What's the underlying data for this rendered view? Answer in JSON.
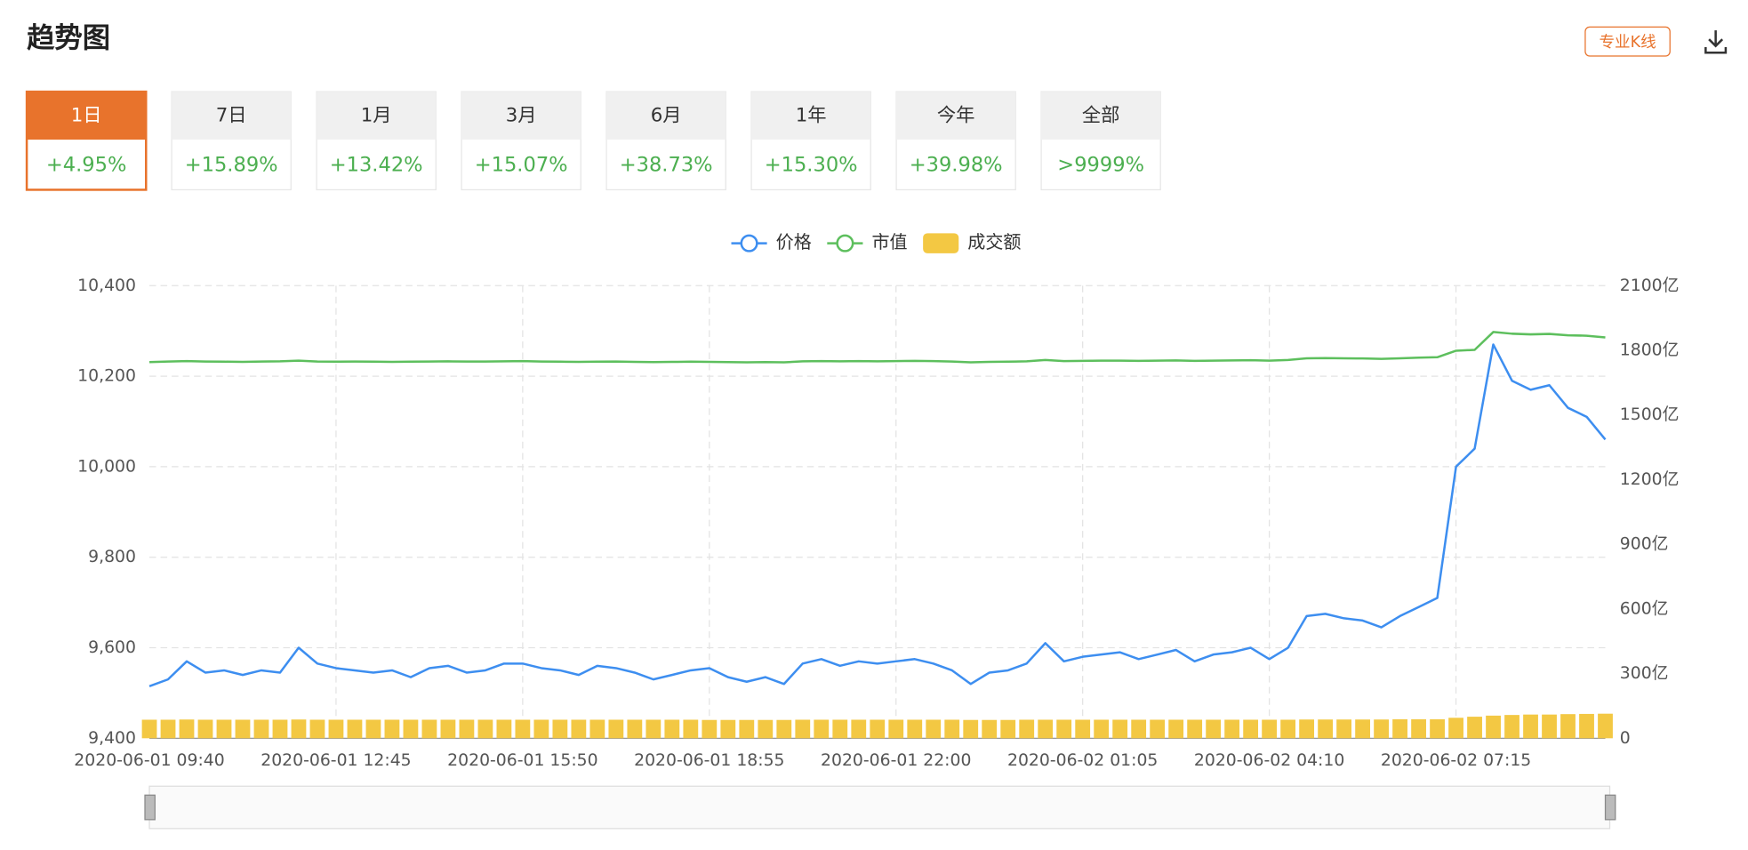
{
  "header": {
    "title": "趋势图",
    "button": "专业K线"
  },
  "tabs": {
    "active": 0,
    "items": [
      {
        "label": "1日",
        "change": "+4.95%"
      },
      {
        "label": "7日",
        "change": "+15.89%"
      },
      {
        "label": "1月",
        "change": "+13.42%"
      },
      {
        "label": "3月",
        "change": "+15.07%"
      },
      {
        "label": "6月",
        "change": "+38.73%"
      },
      {
        "label": "1年",
        "change": "+15.30%"
      },
      {
        "label": "今年",
        "change": "+39.98%"
      },
      {
        "label": "全部",
        "change": ">9999%"
      }
    ]
  },
  "chart_data": {
    "type": "line",
    "grid": true,
    "legend": "top",
    "categories": [
      "2020-06-01 09:40",
      null,
      null,
      null,
      null,
      null,
      null,
      null,
      null,
      null,
      "2020-06-01 12:45",
      null,
      null,
      null,
      null,
      null,
      null,
      null,
      null,
      null,
      "2020-06-01 15:50",
      null,
      null,
      null,
      null,
      null,
      null,
      null,
      null,
      null,
      "2020-06-01 18:55",
      null,
      null,
      null,
      null,
      null,
      null,
      null,
      null,
      null,
      "2020-06-01 22:00",
      null,
      null,
      null,
      null,
      null,
      null,
      null,
      null,
      null,
      "2020-06-02 01:05",
      null,
      null,
      null,
      null,
      null,
      null,
      null,
      null,
      null,
      "2020-06-02 04:10",
      null,
      null,
      null,
      null,
      null,
      null,
      null,
      null,
      null,
      "2020-06-02 07:15",
      null,
      null,
      null,
      null,
      null,
      null,
      null,
      null
    ],
    "ylim": [
      9400,
      10400
    ],
    "yticks": [
      {
        "value": 9400,
        "label": "9,400"
      },
      {
        "value": 9600,
        "label": "9,600"
      },
      {
        "value": 9800,
        "label": "9,800"
      },
      {
        "value": 10000,
        "label": "10,000"
      },
      {
        "value": 10200,
        "label": "10,200"
      },
      {
        "value": 10400,
        "label": "10,400"
      }
    ],
    "y2lim": [
      0,
      2100
    ],
    "y2ticks": [
      0,
      {
        "value": 300,
        "label": "300亿"
      },
      {
        "value": 600,
        "label": "600亿"
      },
      {
        "value": 900,
        "label": "900亿"
      },
      {
        "value": 1200,
        "label": "1200亿"
      },
      {
        "value": 1500,
        "label": "1500亿"
      },
      {
        "value": 1800,
        "label": "1800亿"
      },
      {
        "value": 2100,
        "label": "2100亿"
      }
    ],
    "series": [
      {
        "name": "价格",
        "kind": "line",
        "color": "#3d8ef0",
        "values": [
          9515,
          9530,
          9570,
          9545,
          9550,
          9540,
          9550,
          9545,
          9600,
          9565,
          9555,
          9550,
          9545,
          9550,
          9535,
          9555,
          9560,
          9545,
          9550,
          9565,
          9565,
          9555,
          9550,
          9540,
          9560,
          9555,
          9545,
          9530,
          9540,
          9550,
          9555,
          9535,
          9525,
          9535,
          9520,
          9565,
          9575,
          9560,
          9570,
          9565,
          9570,
          9575,
          9565,
          9550,
          9520,
          9545,
          9550,
          9565,
          9610,
          9570,
          9580,
          9585,
          9590,
          9575,
          9585,
          9595,
          9570,
          9585,
          9590,
          9600,
          9575,
          9600,
          9670,
          9675,
          9665,
          9660,
          9645,
          9670,
          9690,
          9710,
          10000,
          10040,
          10270,
          10190,
          10170,
          10180,
          10130,
          10110,
          10060
        ]
      },
      {
        "name": "市值",
        "kind": "line",
        "axis": "y2",
        "color": "#5dbf5d",
        "values": [
          1745,
          1748,
          1750,
          1748,
          1747,
          1746,
          1748,
          1749,
          1752,
          1748,
          1747,
          1748,
          1747,
          1746,
          1747,
          1748,
          1749,
          1748,
          1748,
          1749,
          1750,
          1748,
          1747,
          1746,
          1747,
          1748,
          1746,
          1745,
          1746,
          1747,
          1746,
          1745,
          1744,
          1745,
          1744,
          1749,
          1750,
          1749,
          1750,
          1749,
          1750,
          1751,
          1750,
          1748,
          1744,
          1746,
          1747,
          1749,
          1755,
          1750,
          1751,
          1752,
          1752,
          1751,
          1752,
          1753,
          1751,
          1752,
          1753,
          1754,
          1752,
          1755,
          1763,
          1764,
          1763,
          1762,
          1760,
          1763,
          1766,
          1768,
          1798,
          1802,
          1885,
          1877,
          1874,
          1876,
          1870,
          1868,
          1860
        ]
      },
      {
        "name": "成交额",
        "kind": "bar",
        "axis": "y2",
        "color": "#f3c843",
        "values": [
          86,
          86,
          87,
          86,
          86,
          86,
          86,
          86,
          87,
          86,
          86,
          86,
          86,
          86,
          86,
          86,
          86,
          86,
          86,
          86,
          86,
          86,
          86,
          86,
          86,
          86,
          86,
          86,
          86,
          86,
          85,
          85,
          85,
          85,
          85,
          86,
          86,
          86,
          86,
          86,
          86,
          86,
          86,
          86,
          85,
          85,
          85,
          86,
          86,
          86,
          86,
          86,
          86,
          86,
          86,
          86,
          86,
          86,
          86,
          86,
          86,
          86,
          87,
          87,
          87,
          87,
          87,
          88,
          88,
          88,
          95,
          100,
          105,
          108,
          110,
          110,
          112,
          113,
          114
        ]
      }
    ]
  }
}
